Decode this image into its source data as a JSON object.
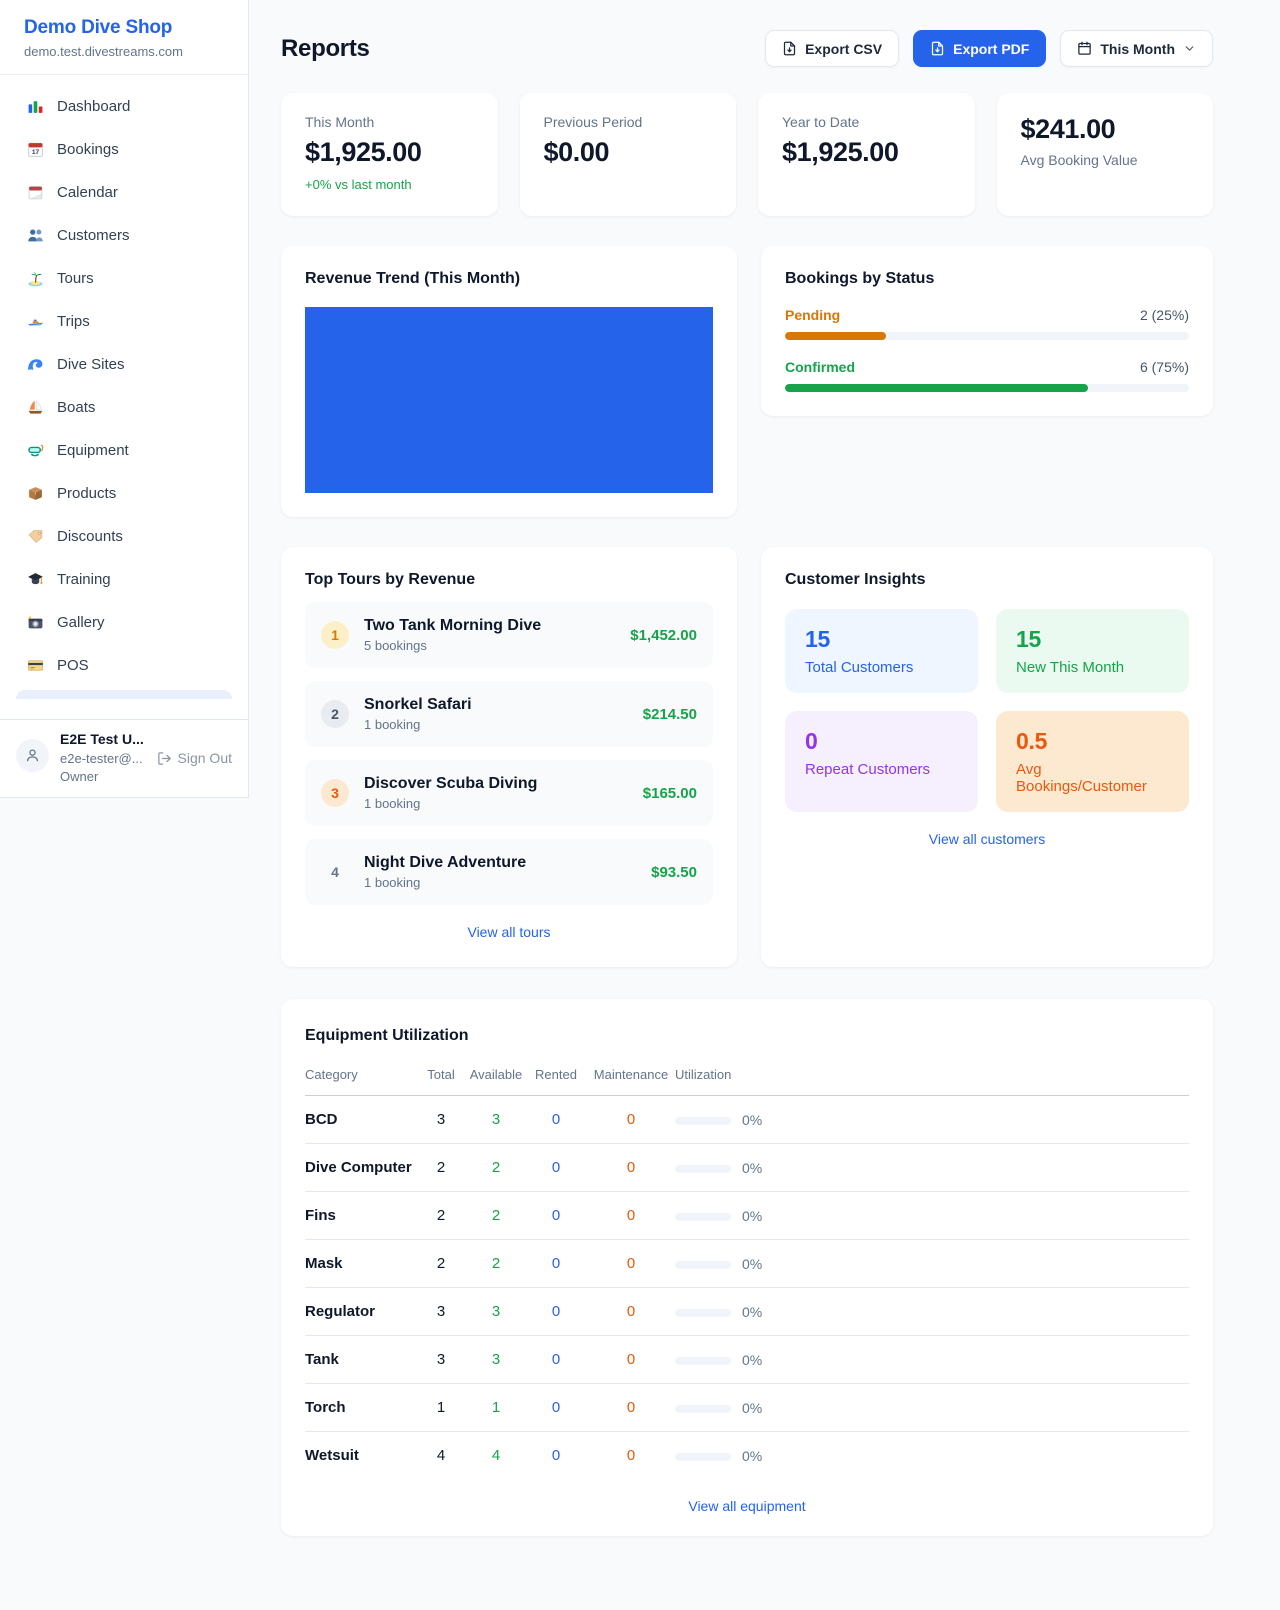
{
  "colors": {
    "accent": "#2563eb",
    "page_bg": "#f8fafc",
    "pending": "#d97706",
    "confirmed": "#16a34a",
    "positive": "#16a34a",
    "rented": "#2563eb",
    "maintenance": "#ea580c",
    "purple": "#9333ea"
  },
  "sidebar": {
    "brand": {
      "name": "Demo Dive Shop",
      "domain": "demo.test.divestreams.com"
    },
    "items": [
      {
        "icon": "dashboard-icon",
        "label": "Dashboard"
      },
      {
        "icon": "bookings-icon",
        "label": "Bookings"
      },
      {
        "icon": "calendar-icon",
        "label": "Calendar"
      },
      {
        "icon": "customers-icon",
        "label": "Customers"
      },
      {
        "icon": "tours-icon",
        "label": "Tours"
      },
      {
        "icon": "trips-icon",
        "label": "Trips"
      },
      {
        "icon": "dive-sites-icon",
        "label": "Dive Sites"
      },
      {
        "icon": "boats-icon",
        "label": "Boats"
      },
      {
        "icon": "equipment-icon",
        "label": "Equipment"
      },
      {
        "icon": "products-icon",
        "label": "Products"
      },
      {
        "icon": "discounts-icon",
        "label": "Discounts"
      },
      {
        "icon": "training-icon",
        "label": "Training"
      },
      {
        "icon": "gallery-icon",
        "label": "Gallery"
      },
      {
        "icon": "pos-icon",
        "label": "POS"
      }
    ],
    "user": {
      "name": "E2E Test U...",
      "email": "e2e-tester@...",
      "role": "Owner",
      "sign_out": "Sign Out"
    }
  },
  "header": {
    "title": "Reports",
    "export_csv": "Export CSV",
    "export_pdf": "Export PDF",
    "period": "This Month"
  },
  "stats": [
    {
      "label": "This Month",
      "value": "$1,925.00",
      "delta": "+0% vs last month"
    },
    {
      "label": "Previous Period",
      "value": "$0.00"
    },
    {
      "label": "Year to Date",
      "value": "$1,925.00"
    },
    {
      "label": "Avg Booking Value",
      "value": "$241.00"
    }
  ],
  "revenue_trend": {
    "title": "Revenue Trend (This Month)",
    "bar_color": "#2563eb"
  },
  "bookings_by_status": {
    "title": "Bookings by Status",
    "rows": [
      {
        "label": "Pending",
        "value": "2 (25%)",
        "pct": 25
      },
      {
        "label": "Confirmed",
        "value": "6 (75%)",
        "pct": 75
      }
    ]
  },
  "top_tours": {
    "title": "Top Tours by Revenue",
    "rows": [
      {
        "rank": "1",
        "name": "Two Tank Morning Dive",
        "sub": "5 bookings",
        "amount": "$1,452.00"
      },
      {
        "rank": "2",
        "name": "Snorkel Safari",
        "sub": "1 booking",
        "amount": "$214.50"
      },
      {
        "rank": "3",
        "name": "Discover Scuba Diving",
        "sub": "1 booking",
        "amount": "$165.00"
      },
      {
        "rank": "4",
        "name": "Night Dive Adventure",
        "sub": "1 booking",
        "amount": "$93.50"
      }
    ],
    "link": "View all tours"
  },
  "customer_insights": {
    "title": "Customer Insights",
    "tiles": [
      {
        "value": "15",
        "label": "Total Customers"
      },
      {
        "value": "15",
        "label": "New This Month"
      },
      {
        "value": "0",
        "label": "Repeat Customers"
      },
      {
        "value": "0.5",
        "label": "Avg Bookings/Customer"
      }
    ],
    "link": "View all customers"
  },
  "equipment": {
    "title": "Equipment Utilization",
    "columns": [
      "Category",
      "Total",
      "Available",
      "Rented",
      "Maintenance",
      "Utilization"
    ],
    "rows": [
      {
        "category": "BCD",
        "total": "3",
        "available": "3",
        "rented": "0",
        "maintenance": "0",
        "utilization": "0%",
        "utilization_pct": 0
      },
      {
        "category": "Dive Computer",
        "total": "2",
        "available": "2",
        "rented": "0",
        "maintenance": "0",
        "utilization": "0%",
        "utilization_pct": 0
      },
      {
        "category": "Fins",
        "total": "2",
        "available": "2",
        "rented": "0",
        "maintenance": "0",
        "utilization": "0%",
        "utilization_pct": 0
      },
      {
        "category": "Mask",
        "total": "2",
        "available": "2",
        "rented": "0",
        "maintenance": "0",
        "utilization": "0%",
        "utilization_pct": 0
      },
      {
        "category": "Regulator",
        "total": "3",
        "available": "3",
        "rented": "0",
        "maintenance": "0",
        "utilization": "0%",
        "utilization_pct": 0
      },
      {
        "category": "Tank",
        "total": "3",
        "available": "3",
        "rented": "0",
        "maintenance": "0",
        "utilization": "0%",
        "utilization_pct": 0
      },
      {
        "category": "Torch",
        "total": "1",
        "available": "1",
        "rented": "0",
        "maintenance": "0",
        "utilization": "0%",
        "utilization_pct": 0
      },
      {
        "category": "Wetsuit",
        "total": "4",
        "available": "4",
        "rented": "0",
        "maintenance": "0",
        "utilization": "0%",
        "utilization_pct": 0
      }
    ],
    "link": "View all equipment"
  }
}
